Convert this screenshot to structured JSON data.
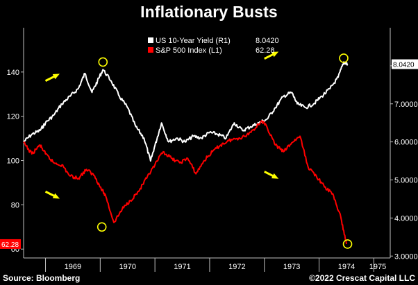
{
  "title": "Inflationary Busts",
  "footer": {
    "source": "Source: Bloomberg",
    "credit": "©2022 Crescat Capital LLC"
  },
  "colors": {
    "background": "#000000",
    "yield_line": "#ffffff",
    "sp500_line": "#ff0000",
    "annotation": "#ffff00",
    "axis": "#bfbfbf"
  },
  "chart_data": {
    "type": "line",
    "title": "Inflationary Busts",
    "x_ticks": [
      "1969",
      "1970",
      "1971",
      "1972",
      "1973",
      "1974",
      "1975"
    ],
    "xlim": [
      1968.6,
      1975.3
    ],
    "left_axis": {
      "ticks": [
        "140",
        "120",
        "100",
        "80",
        "60"
      ],
      "ylim": [
        56,
        160
      ]
    },
    "right_axis": {
      "ticks": [
        "8.0000",
        "7.0000",
        "6.0000",
        "5.0000",
        "4.0000",
        "3.0000"
      ],
      "ylim": [
        2.95,
        9.0
      ]
    },
    "legend": {
      "position": "top-center"
    },
    "series": [
      {
        "name": "US 10-Year Yield (R1)",
        "last_value": "8.0420",
        "axis": "right",
        "color": "#ffffff",
        "x": [
          1968.6,
          1968.75,
          1968.9,
          1969.0,
          1969.15,
          1969.3,
          1969.45,
          1969.6,
          1969.72,
          1969.85,
          1969.95,
          1970.05,
          1970.2,
          1970.35,
          1970.5,
          1970.65,
          1970.8,
          1970.92,
          1971.0,
          1971.12,
          1971.25,
          1971.4,
          1971.55,
          1971.7,
          1971.85,
          1972.0,
          1972.15,
          1972.3,
          1972.45,
          1972.6,
          1972.75,
          1972.9,
          1973.05,
          1973.2,
          1973.35,
          1973.5,
          1973.6,
          1973.75,
          1973.9,
          1974.05,
          1974.2,
          1974.35,
          1974.45,
          1974.52
        ],
        "values": [
          6.0,
          6.2,
          6.3,
          6.5,
          6.7,
          7.0,
          7.2,
          7.4,
          7.8,
          7.3,
          7.6,
          7.9,
          7.6,
          7.2,
          6.9,
          6.4,
          6.1,
          5.5,
          5.9,
          6.5,
          6.0,
          6.1,
          6.0,
          6.15,
          6.1,
          6.25,
          6.2,
          6.1,
          6.5,
          6.3,
          6.4,
          6.5,
          6.6,
          6.9,
          7.2,
          7.3,
          7.0,
          6.9,
          7.0,
          7.2,
          7.4,
          7.7,
          8.1,
          8.042
        ]
      },
      {
        "name": "S&P 500 Index (L1)",
        "last_value": "62.28",
        "axis": "left",
        "color": "#ff0000",
        "x": [
          1968.6,
          1968.75,
          1968.9,
          1969.0,
          1969.15,
          1969.3,
          1969.45,
          1969.6,
          1969.75,
          1969.9,
          1970.0,
          1970.1,
          1970.25,
          1970.4,
          1970.55,
          1970.7,
          1970.85,
          1971.0,
          1971.15,
          1971.3,
          1971.45,
          1971.6,
          1971.75,
          1971.9,
          1972.05,
          1972.2,
          1972.35,
          1972.5,
          1972.65,
          1972.8,
          1972.95,
          1973.05,
          1973.2,
          1973.35,
          1973.5,
          1973.65,
          1973.8,
          1973.95,
          1974.1,
          1974.25,
          1974.4,
          1974.5
        ],
        "values": [
          108,
          103,
          107,
          103,
          99,
          98,
          93,
          92,
          96,
          93,
          88,
          84,
          72,
          78,
          82,
          86,
          92,
          98,
          104,
          101,
          99,
          101,
          94,
          100,
          104,
          107,
          109,
          110,
          111,
          114,
          118,
          115,
          107,
          104,
          108,
          111,
          97,
          93,
          88,
          85,
          74,
          62.28
        ]
      }
    ],
    "annotations": {
      "circles": [
        {
          "x": 1970.05,
          "value": 8.1,
          "axis": "right"
        },
        {
          "x": 1970.03,
          "value": 70,
          "axis": "left"
        },
        {
          "x": 1974.45,
          "value": 8.2,
          "axis": "right"
        },
        {
          "x": 1974.52,
          "value": 62.28,
          "axis": "left"
        }
      ],
      "arrows": [
        {
          "direction": "up-right",
          "x": 1969.0,
          "value": 136,
          "axis": "left"
        },
        {
          "direction": "down-right",
          "x": 1969.0,
          "value": 86,
          "axis": "left"
        },
        {
          "direction": "up-right",
          "x": 1973.0,
          "value": 146,
          "axis": "left"
        },
        {
          "direction": "down-right",
          "x": 1973.0,
          "value": 95,
          "axis": "left"
        }
      ]
    }
  }
}
